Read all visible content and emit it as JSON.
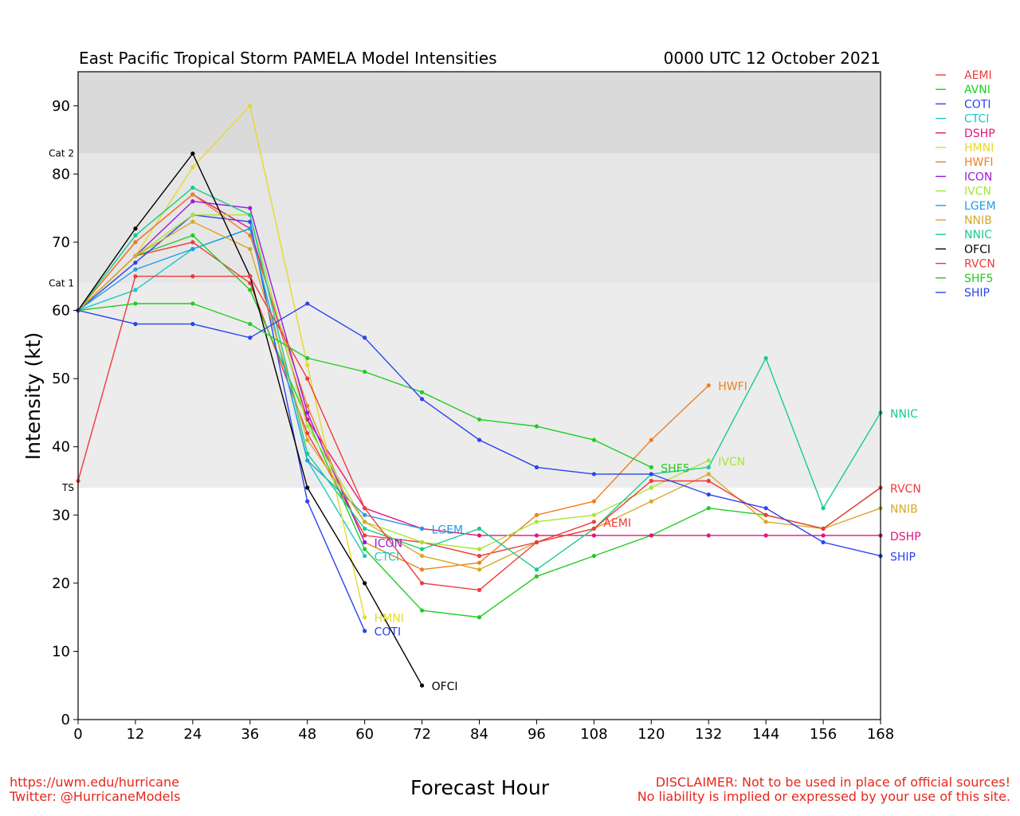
{
  "chart_data": {
    "type": "line",
    "title": "East Pacific Tropical Storm PAMELA Model Intensities",
    "title_right": "0000 UTC 12 October 2021",
    "xlabel": "Forecast Hour",
    "ylabel": "Intensity (kt)",
    "xlim": [
      0,
      168
    ],
    "ylim": [
      0,
      95
    ],
    "x_ticks": [
      0,
      12,
      24,
      36,
      48,
      60,
      72,
      84,
      96,
      108,
      120,
      132,
      144,
      156,
      168
    ],
    "y_ticks": [
      0,
      10,
      20,
      30,
      40,
      50,
      60,
      70,
      80,
      90
    ],
    "legend_position": "right",
    "bands": [
      {
        "label": "TS",
        "from": 34,
        "to": 64,
        "color": "#ececec"
      },
      {
        "label": "Cat 1",
        "from": 64,
        "to": 83,
        "color": "#e6e6e6"
      },
      {
        "label": "Cat 2",
        "from": 83,
        "to": 95,
        "color": "#dadada"
      }
    ],
    "series": [
      {
        "name": "AEMI",
        "color": "#ef3b3b",
        "end_label": true,
        "points": [
          [
            0,
            60
          ],
          [
            12,
            68
          ],
          [
            24,
            70
          ],
          [
            36,
            64
          ],
          [
            48,
            42
          ],
          [
            60,
            27
          ],
          [
            72,
            26
          ],
          [
            84,
            24
          ],
          [
            96,
            26
          ],
          [
            108,
            29
          ]
        ]
      },
      {
        "name": "AVNI",
        "color": "#22cc22",
        "end_label": false,
        "points": [
          [
            0,
            60
          ],
          [
            12,
            68
          ],
          [
            24,
            71
          ],
          [
            36,
            63
          ],
          [
            48,
            44
          ],
          [
            60,
            25
          ],
          [
            72,
            16
          ],
          [
            84,
            15
          ],
          [
            96,
            21
          ],
          [
            108,
            24
          ],
          [
            120,
            27
          ],
          [
            132,
            31
          ],
          [
            144,
            30
          ],
          [
            156,
            28
          ],
          [
            168,
            34
          ]
        ]
      },
      {
        "name": "COTI",
        "color": "#2a44ee",
        "end_label": true,
        "points": [
          [
            0,
            60
          ],
          [
            12,
            67
          ],
          [
            24,
            74
          ],
          [
            36,
            73
          ],
          [
            48,
            32
          ],
          [
            60,
            13
          ]
        ]
      },
      {
        "name": "CTCI",
        "color": "#18c8c8",
        "end_label": true,
        "points": [
          [
            0,
            60
          ],
          [
            12,
            63
          ],
          [
            24,
            69
          ],
          [
            36,
            72
          ],
          [
            48,
            38
          ],
          [
            60,
            24
          ]
        ]
      },
      {
        "name": "DSHP",
        "color": "#e6127a",
        "end_label": true,
        "points": [
          [
            0,
            60
          ],
          [
            12,
            70
          ],
          [
            24,
            77
          ],
          [
            36,
            72
          ],
          [
            48,
            44
          ],
          [
            60,
            31
          ],
          [
            72,
            28
          ],
          [
            84,
            27
          ],
          [
            96,
            27
          ],
          [
            108,
            27
          ],
          [
            120,
            27
          ],
          [
            132,
            27
          ],
          [
            144,
            27
          ],
          [
            156,
            27
          ],
          [
            168,
            27
          ]
        ]
      },
      {
        "name": "HMNI",
        "color": "#e6d82a",
        "end_label": true,
        "points": [
          [
            0,
            60
          ],
          [
            12,
            68
          ],
          [
            24,
            81
          ],
          [
            36,
            90
          ],
          [
            48,
            52
          ],
          [
            60,
            15
          ]
        ]
      },
      {
        "name": "HWFI",
        "color": "#ef7f22",
        "end_label": true,
        "points": [
          [
            0,
            60
          ],
          [
            12,
            70
          ],
          [
            24,
            77
          ],
          [
            36,
            71
          ],
          [
            48,
            46
          ],
          [
            60,
            26
          ],
          [
            72,
            22
          ],
          [
            84,
            23
          ],
          [
            96,
            30
          ],
          [
            108,
            32
          ],
          [
            120,
            41
          ],
          [
            132,
            49
          ]
        ]
      },
      {
        "name": "ICON",
        "color": "#9b1cd8",
        "end_label": true,
        "points": [
          [
            0,
            60
          ],
          [
            12,
            68
          ],
          [
            24,
            76
          ],
          [
            36,
            75
          ],
          [
            48,
            45
          ],
          [
            60,
            26
          ]
        ]
      },
      {
        "name": "IVCN",
        "color": "#a8e43a",
        "end_label": true,
        "points": [
          [
            0,
            60
          ],
          [
            12,
            68
          ],
          [
            24,
            74
          ],
          [
            36,
            74
          ],
          [
            48,
            43
          ],
          [
            60,
            29
          ],
          [
            72,
            26
          ],
          [
            84,
            25
          ],
          [
            96,
            29
          ],
          [
            108,
            30
          ],
          [
            120,
            34
          ],
          [
            132,
            38
          ]
        ]
      },
      {
        "name": "LGEM",
        "color": "#1e9de8",
        "end_label": true,
        "points": [
          [
            0,
            60
          ],
          [
            12,
            66
          ],
          [
            24,
            69
          ],
          [
            36,
            72
          ],
          [
            48,
            38
          ],
          [
            60,
            30
          ],
          [
            72,
            28
          ]
        ]
      },
      {
        "name": "NNIB",
        "color": "#d8a82a",
        "end_label": true,
        "points": [
          [
            0,
            60
          ],
          [
            12,
            68
          ],
          [
            24,
            73
          ],
          [
            36,
            69
          ],
          [
            48,
            41
          ],
          [
            60,
            29
          ],
          [
            72,
            24
          ],
          [
            84,
            22
          ],
          [
            96,
            26
          ],
          [
            108,
            28
          ],
          [
            120,
            32
          ],
          [
            132,
            36
          ],
          [
            144,
            29
          ],
          [
            156,
            28
          ],
          [
            168,
            31
          ]
        ]
      },
      {
        "name": "NNIC",
        "color": "#18cc88",
        "end_label": true,
        "points": [
          [
            0,
            60
          ],
          [
            12,
            71
          ],
          [
            24,
            78
          ],
          [
            36,
            74
          ],
          [
            48,
            39
          ],
          [
            60,
            28
          ],
          [
            72,
            25
          ],
          [
            84,
            28
          ],
          [
            96,
            22
          ],
          [
            108,
            28
          ],
          [
            120,
            36
          ],
          [
            132,
            37
          ],
          [
            144,
            53
          ],
          [
            156,
            31
          ],
          [
            168,
            45
          ]
        ]
      },
      {
        "name": "OFCI",
        "color": "#000000",
        "end_label": true,
        "points": [
          [
            0,
            60
          ],
          [
            12,
            72
          ],
          [
            24,
            83
          ],
          [
            36,
            65
          ],
          [
            48,
            34
          ],
          [
            60,
            20
          ],
          [
            72,
            5
          ]
        ]
      },
      {
        "name": "RVCN",
        "color": "#ef3b3b",
        "end_label": true,
        "points": [
          [
            0,
            35
          ],
          [
            12,
            65
          ],
          [
            24,
            65
          ],
          [
            36,
            65
          ],
          [
            48,
            50
          ],
          [
            60,
            31
          ],
          [
            72,
            20
          ],
          [
            84,
            19
          ],
          [
            96,
            26
          ],
          [
            108,
            28
          ],
          [
            120,
            35
          ],
          [
            132,
            35
          ],
          [
            144,
            30
          ],
          [
            156,
            28
          ],
          [
            168,
            34
          ]
        ]
      },
      {
        "name": "SHF5",
        "color": "#22cc22",
        "end_label": true,
        "points": [
          [
            0,
            60
          ],
          [
            12,
            61
          ],
          [
            24,
            61
          ],
          [
            36,
            58
          ],
          [
            48,
            53
          ],
          [
            60,
            51
          ],
          [
            72,
            48
          ],
          [
            84,
            44
          ],
          [
            96,
            43
          ],
          [
            108,
            41
          ],
          [
            120,
            37
          ]
        ]
      },
      {
        "name": "SHIP",
        "color": "#2a44ee",
        "end_label": true,
        "points": [
          [
            0,
            60
          ],
          [
            12,
            58
          ],
          [
            24,
            58
          ],
          [
            36,
            56
          ],
          [
            48,
            61
          ],
          [
            60,
            56
          ],
          [
            72,
            47
          ],
          [
            84,
            41
          ],
          [
            96,
            37
          ],
          [
            108,
            36
          ],
          [
            120,
            36
          ],
          [
            132,
            33
          ],
          [
            144,
            31
          ],
          [
            156,
            26
          ],
          [
            168,
            24
          ]
        ]
      }
    ]
  },
  "footer": {
    "url": "https://uwm.edu/hurricane",
    "twitter": "Twitter: @HurricaneModels",
    "disclaimer_1": "DISCLAIMER: Not to be used in place of official sources!",
    "disclaimer_2": "No liability is implied or expressed by your use of this site."
  }
}
